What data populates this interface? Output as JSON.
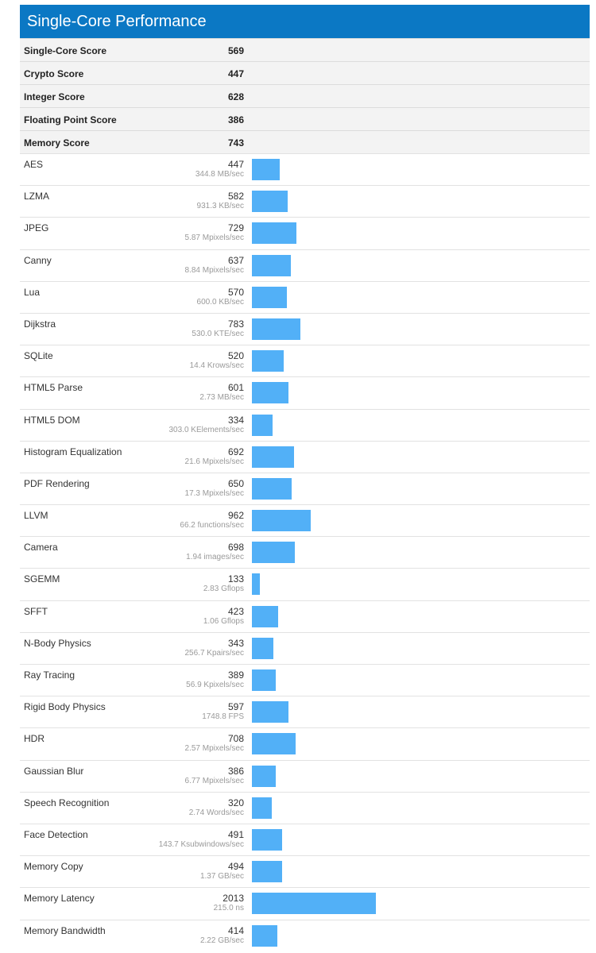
{
  "header": {
    "title": "Single-Core Performance"
  },
  "summary_scores": [
    {
      "name": "Single-Core Score",
      "value": "569"
    },
    {
      "name": "Crypto Score",
      "value": "447"
    },
    {
      "name": "Integer Score",
      "value": "628"
    },
    {
      "name": "Floating Point Score",
      "value": "386"
    },
    {
      "name": "Memory Score",
      "value": "743"
    }
  ],
  "colors": {
    "header_bg": "#0b78c4",
    "bar": "#52b0f7",
    "summary_bg": "#f3f3f3"
  },
  "chart_data": {
    "type": "bar",
    "orientation": "horizontal",
    "title": "Single-Core Performance",
    "categories": [
      "AES",
      "LZMA",
      "JPEG",
      "Canny",
      "Lua",
      "Dijkstra",
      "SQLite",
      "HTML5 Parse",
      "HTML5 DOM",
      "Histogram Equalization",
      "PDF Rendering",
      "LLVM",
      "Camera",
      "SGEMM",
      "SFFT",
      "N-Body Physics",
      "Ray Tracing",
      "Rigid Body Physics",
      "HDR",
      "Gaussian Blur",
      "Speech Recognition",
      "Face Detection",
      "Memory Copy",
      "Memory Latency",
      "Memory Bandwidth"
    ],
    "values": [
      447,
      582,
      729,
      637,
      570,
      783,
      520,
      601,
      334,
      692,
      650,
      962,
      698,
      133,
      423,
      343,
      389,
      597,
      708,
      386,
      320,
      491,
      494,
      2013,
      414
    ],
    "rates": [
      "344.8 MB/sec",
      "931.3 KB/sec",
      "5.87 Mpixels/sec",
      "8.84 Mpixels/sec",
      "600.0 KB/sec",
      "530.0 KTE/sec",
      "14.4 Krows/sec",
      "2.73 MB/sec",
      "303.0 KElements/sec",
      "21.6 Mpixels/sec",
      "17.3 Mpixels/sec",
      "66.2 functions/sec",
      "1.94 images/sec",
      "2.83 Gflops",
      "1.06 Gflops",
      "256.7 Kpairs/sec",
      "56.9 Kpixels/sec",
      "1748.8 FPS",
      "2.57 Mpixels/sec",
      "6.77 Mpixels/sec",
      "2.74 Words/sec",
      "143.7 Ksubwindows/sec",
      "1.37 GB/sec",
      "215.0 ns",
      "2.22 GB/sec"
    ],
    "xlim": [
      0,
      5500
    ],
    "grid": false,
    "legend": "none"
  }
}
